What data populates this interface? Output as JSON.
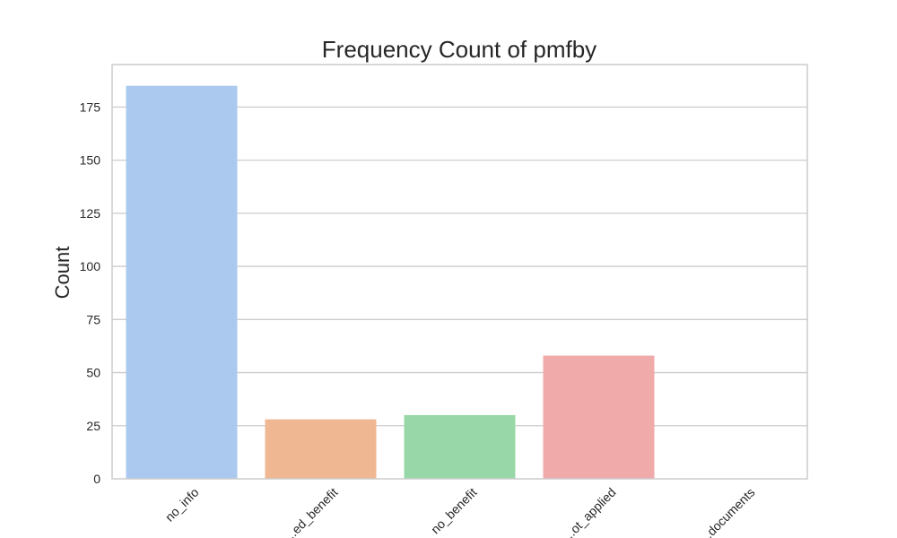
{
  "chart_data": {
    "type": "bar",
    "title": "Frequency Count of pmfby",
    "xlabel": "",
    "ylabel": "Count",
    "categories": [
      "no_info",
      "...ed_benefit",
      "no_benefit",
      "...ot_applied",
      "...documents"
    ],
    "values": [
      185,
      28,
      30,
      58,
      0
    ],
    "ylim": [
      0,
      195
    ],
    "yticks": [
      0,
      25,
      50,
      75,
      100,
      125,
      150,
      175
    ],
    "grid": true,
    "x_tick_rotation": 45,
    "colors": [
      "#abc9ee",
      "#f0b892",
      "#98d8a8",
      "#f0aaaa",
      "#cfb8e6"
    ],
    "grid_color": "#cccccc",
    "frame_color": "#cccccc"
  }
}
